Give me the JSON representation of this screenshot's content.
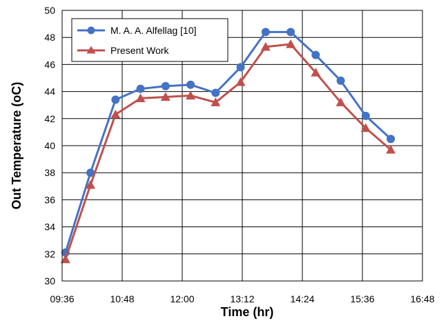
{
  "chart_data": {
    "type": "line",
    "xlabel": "Time (hr)",
    "ylabel": "Out Temperature (oC)",
    "x_ticks": [
      "09:36",
      "10:48",
      "12:00",
      "13:12",
      "14:24",
      "15:36",
      "16:48"
    ],
    "xlim": [
      "09:36",
      "16:48"
    ],
    "ylim": [
      30,
      50
    ],
    "y_ticks": [
      30,
      32,
      34,
      36,
      38,
      40,
      42,
      44,
      46,
      48,
      50
    ],
    "grid": true,
    "legend_position": "top-left",
    "x": [
      "09:40",
      "10:10",
      "10:40",
      "11:10",
      "11:40",
      "12:10",
      "12:40",
      "13:10",
      "13:40",
      "14:10",
      "14:40",
      "15:10",
      "15:40",
      "16:10"
    ],
    "series": [
      {
        "name": "M. A. A. Alfellag [10]",
        "color": "#4472C4",
        "marker": "circle",
        "values": [
          32.1,
          38.0,
          43.4,
          44.2,
          44.4,
          44.5,
          43.9,
          45.8,
          48.4,
          48.4,
          46.7,
          44.8,
          42.2,
          40.5
        ]
      },
      {
        "name": "Present Work",
        "color": "#C0504D",
        "marker": "triangle",
        "values": [
          31.6,
          37.1,
          42.3,
          43.5,
          43.6,
          43.7,
          43.2,
          44.7,
          47.3,
          47.5,
          45.4,
          43.2,
          41.3,
          39.7
        ]
      }
    ]
  }
}
